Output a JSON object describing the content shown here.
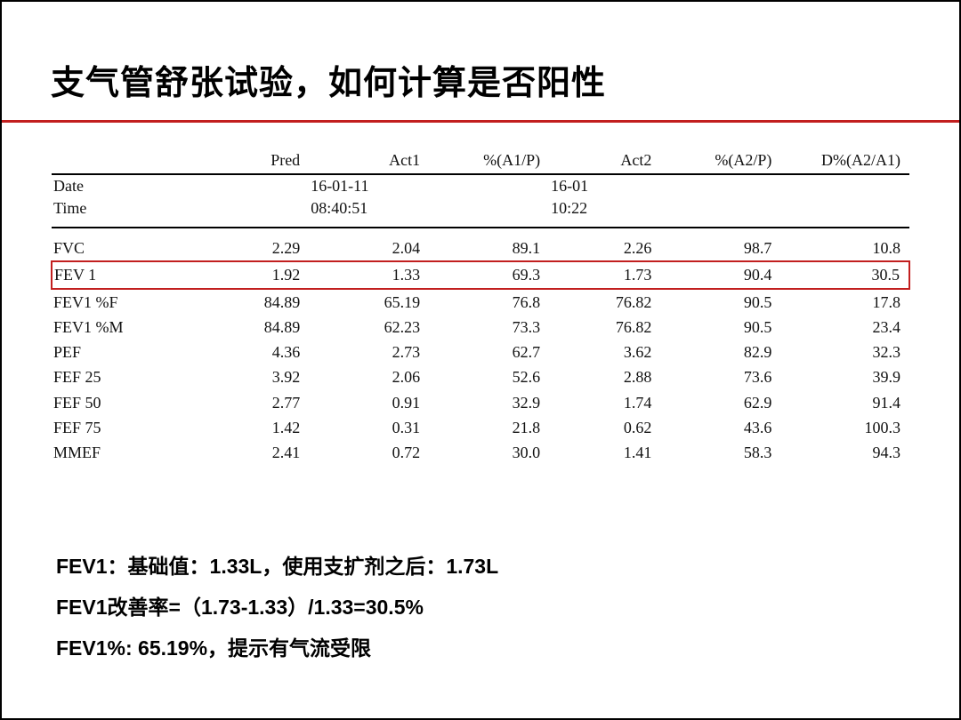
{
  "title": "支气管舒张试验，如何计算是否阳性",
  "colors": {
    "accent": "#c21f1f",
    "text": "#000000",
    "background": "#ffffff"
  },
  "table": {
    "headers": {
      "label": "",
      "pred": "Pred",
      "act1": "Act1",
      "pct1": "%(A1/P)",
      "act2": "Act2",
      "pct2": "%(A2/P)",
      "dpct": "D%(A2/A1)"
    },
    "datetime": {
      "date_label": "Date",
      "time_label": "Time",
      "date1": "16-01-11",
      "time1": "08:40:51",
      "date2": "16-01",
      "time2": "10:22"
    },
    "rows": [
      {
        "label": "FVC",
        "pred": "2.29",
        "act1": "2.04",
        "pct1": "89.1",
        "act2": "2.26",
        "pct2": "98.7",
        "dpct": "10.8",
        "highlight": false
      },
      {
        "label": "FEV  1",
        "pred": "1.92",
        "act1": "1.33",
        "pct1": "69.3",
        "act2": "1.73",
        "pct2": "90.4",
        "dpct": "30.5",
        "highlight": true
      },
      {
        "label": "FEV1 %F",
        "pred": "84.89",
        "act1": "65.19",
        "pct1": "76.8",
        "act2": "76.82",
        "pct2": "90.5",
        "dpct": "17.8",
        "highlight": false
      },
      {
        "label": "FEV1 %M",
        "pred": "84.89",
        "act1": "62.23",
        "pct1": "73.3",
        "act2": "76.82",
        "pct2": "90.5",
        "dpct": "23.4",
        "highlight": false
      },
      {
        "label": "PEF",
        "pred": "4.36",
        "act1": "2.73",
        "pct1": "62.7",
        "act2": "3.62",
        "pct2": "82.9",
        "dpct": "32.3",
        "highlight": false
      },
      {
        "label": "FEF 25",
        "pred": "3.92",
        "act1": "2.06",
        "pct1": "52.6",
        "act2": "2.88",
        "pct2": "73.6",
        "dpct": "39.9",
        "highlight": false
      },
      {
        "label": "FEF 50",
        "pred": "2.77",
        "act1": "0.91",
        "pct1": "32.9",
        "act2": "1.74",
        "pct2": "62.9",
        "dpct": "91.4",
        "highlight": false
      },
      {
        "label": "FEF 75",
        "pred": "1.42",
        "act1": "0.31",
        "pct1": "21.8",
        "act2": "0.62",
        "pct2": "43.6",
        "dpct": "100.3",
        "highlight": false
      },
      {
        "label": "MMEF",
        "pred": "2.41",
        "act1": "0.72",
        "pct1": "30.0",
        "act2": "1.41",
        "pct2": "58.3",
        "dpct": "94.3",
        "highlight": false
      }
    ]
  },
  "notes": [
    "FEV1：基础值：1.33L，使用支扩剂之后：1.73L",
    "FEV1改善率=（1.73-1.33）/1.33=30.5%",
    "FEV1%: 65.19%，提示有气流受限"
  ]
}
